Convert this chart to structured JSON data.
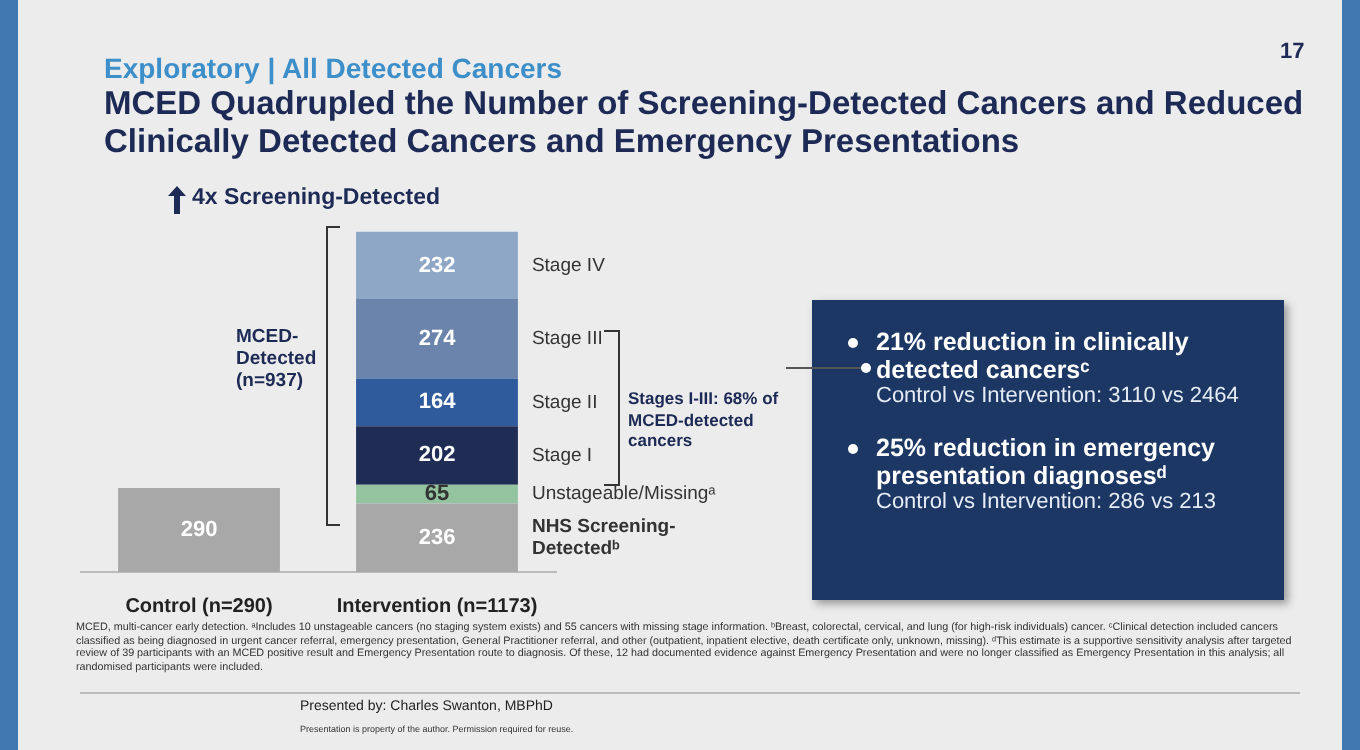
{
  "chart_data": {
    "type": "bar",
    "stacked": true,
    "data_labels": true,
    "title": "MCED Quadrupled the Number of Screening-Detected Cancers and Reduced Clinically Detected Cancers and Emergency Presentations",
    "subtitle": "Exploratory | All Detected Cancers",
    "categories": [
      "Control (n=290)",
      "Intervention (n=1173)"
    ],
    "series": [
      {
        "name": "NHS Screening-Detectedᵇ",
        "color": "#a8a8a8",
        "values": [
          290,
          236
        ]
      },
      {
        "name": "Unstageable/Missingᵃ",
        "color": "#93c49f",
        "values": [
          null,
          65
        ]
      },
      {
        "name": "Stage I",
        "color": "#1f2d55",
        "values": [
          null,
          202
        ]
      },
      {
        "name": "Stage II",
        "color": "#2f5a9c",
        "values": [
          null,
          164
        ]
      },
      {
        "name": "Stage III",
        "color": "#6a84ac",
        "values": [
          null,
          274
        ]
      },
      {
        "name": "Stage IV",
        "color": "#8fa7c7",
        "values": [
          null,
          232
        ]
      }
    ],
    "annotations": [
      "17",
      "4x Screening-Detected",
      "MCED-Detected (n=937)",
      "Stages I-III: 68% of MCED-detected cancers",
      "21% reduction in clinically detected cancersᶜ",
      "Control vs Intervention: 3110 vs 2464",
      "25% reduction in emergency presentation diagnosesᵈ",
      "Control vs Intervention: 286 vs 213",
      "MCED, multi-cancer early detection. ᵃIncludes 10 unstageable cancers (no staging system exists) and 55 cancers with missing stage information. ᵇBreast, colorectal, cervical, and lung (for high-risk individuals) cancer. ᶜClinical detection included cancers classified as being diagnosed in urgent cancer referral, emergency presentation, General Practitioner referral, and other (outpatient, inpatient elective, death certificate only, unknown, missing). ᵈThis estimate is a supportive sensitivity analysis after targeted review of 39 participants with an MCED positive result and Emergency Presentation route to diagnosis. Of these, 12 had documented evidence against Emergency Presentation and were no longer classified as Emergency Presentation in this analysis; all randomised participants were included.",
      "Presented by: Charles Swanton, MBPhD",
      "Presentation is property of the author. Permission required for reuse."
    ]
  }
}
